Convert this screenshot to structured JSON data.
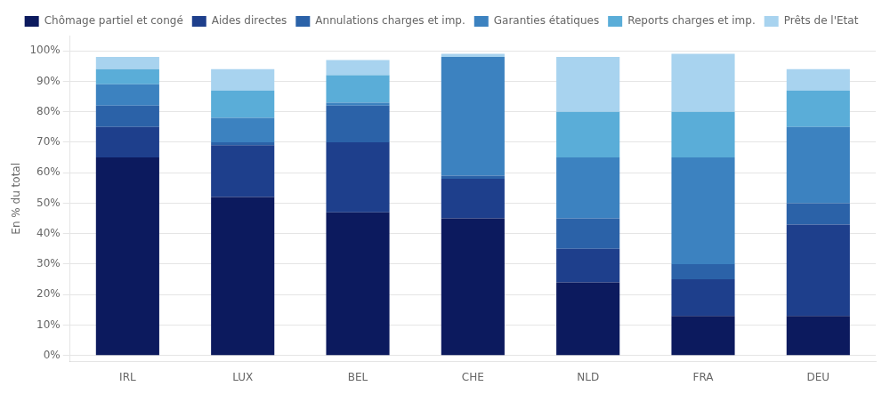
{
  "chart_data": {
    "type": "bar",
    "stacked": true,
    "categories": [
      "IRL",
      "LUX",
      "BEL",
      "CHE",
      "NLD",
      "FRA",
      "DEU"
    ],
    "series": [
      {
        "name": "Chômage partiel et congé",
        "color": "#0c1a5e",
        "values": [
          65,
          52,
          47,
          45,
          24,
          13,
          13
        ]
      },
      {
        "name": "Aides directes",
        "color": "#1e3f8c",
        "values": [
          10,
          17,
          23,
          13,
          11,
          12,
          30
        ]
      },
      {
        "name": "Annulations charges et imp.",
        "color": "#2b62a8",
        "values": [
          7,
          1,
          12,
          1,
          10,
          5,
          7
        ]
      },
      {
        "name": "Garanties étatiques",
        "color": "#3c82c0",
        "values": [
          7,
          8,
          1,
          39,
          20,
          35,
          25
        ]
      },
      {
        "name": "Reports charges et imp.",
        "color": "#5aadd8",
        "values": [
          5,
          9,
          9,
          0,
          15,
          15,
          12
        ]
      },
      {
        "name": "Prêts de l'Etat",
        "color": "#a8d3ef",
        "values": [
          4,
          7,
          5,
          1,
          18,
          19,
          7
        ]
      }
    ],
    "ylabel": "En % du total",
    "ylim": [
      -2,
      105
    ],
    "yticks": [
      {
        "value": 0,
        "label": "0%"
      },
      {
        "value": 10,
        "label": "10%"
      },
      {
        "value": 20,
        "label": "20%"
      },
      {
        "value": 30,
        "label": "30%"
      },
      {
        "value": 40,
        "label": "40%"
      },
      {
        "value": 50,
        "label": "50%"
      },
      {
        "value": 60,
        "label": "60%"
      },
      {
        "value": 70,
        "label": "70%"
      },
      {
        "value": 80,
        "label": "80%"
      },
      {
        "value": 90,
        "label": "90%"
      },
      {
        "value": 100,
        "label": "100%"
      }
    ],
    "grid": true,
    "legend": "top"
  }
}
